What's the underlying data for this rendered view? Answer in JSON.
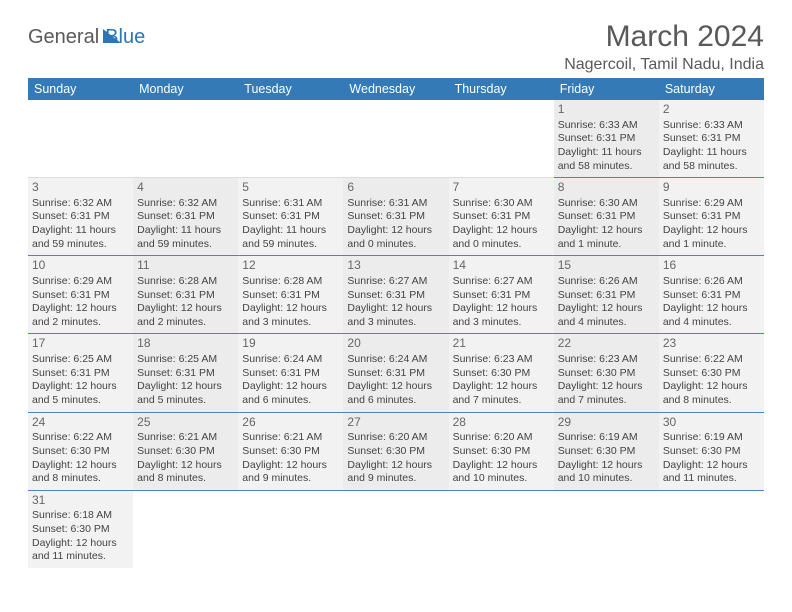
{
  "logo": {
    "part1": "General",
    "part2": "Blue"
  },
  "title": "March 2024",
  "location": "Nagercoil, Tamil Nadu, India",
  "colors": {
    "header_bg": "#337ab7",
    "header_text": "#ffffff",
    "row_bg_a": "#f2f2f2",
    "row_bg_b": "#ececec",
    "border": "#4a86c5",
    "text": "#444444",
    "title_text": "#595959",
    "logo_blue": "#2e75b6"
  },
  "typography": {
    "title_fontsize": 30,
    "location_fontsize": 16,
    "header_fontsize": 12.5,
    "cell_fontsize": 10.5,
    "daynum_fontsize": 12
  },
  "day_headers": [
    "Sunday",
    "Monday",
    "Tuesday",
    "Wednesday",
    "Thursday",
    "Friday",
    "Saturday"
  ],
  "weeks": [
    [
      null,
      null,
      null,
      null,
      null,
      {
        "n": "1",
        "sr": "6:33 AM",
        "ss": "6:31 PM",
        "dl": "11 hours and 58 minutes."
      },
      {
        "n": "2",
        "sr": "6:33 AM",
        "ss": "6:31 PM",
        "dl": "11 hours and 58 minutes."
      }
    ],
    [
      {
        "n": "3",
        "sr": "6:32 AM",
        "ss": "6:31 PM",
        "dl": "11 hours and 59 minutes."
      },
      {
        "n": "4",
        "sr": "6:32 AM",
        "ss": "6:31 PM",
        "dl": "11 hours and 59 minutes."
      },
      {
        "n": "5",
        "sr": "6:31 AM",
        "ss": "6:31 PM",
        "dl": "11 hours and 59 minutes."
      },
      {
        "n": "6",
        "sr": "6:31 AM",
        "ss": "6:31 PM",
        "dl": "12 hours and 0 minutes."
      },
      {
        "n": "7",
        "sr": "6:30 AM",
        "ss": "6:31 PM",
        "dl": "12 hours and 0 minutes."
      },
      {
        "n": "8",
        "sr": "6:30 AM",
        "ss": "6:31 PM",
        "dl": "12 hours and 1 minute."
      },
      {
        "n": "9",
        "sr": "6:29 AM",
        "ss": "6:31 PM",
        "dl": "12 hours and 1 minute."
      }
    ],
    [
      {
        "n": "10",
        "sr": "6:29 AM",
        "ss": "6:31 PM",
        "dl": "12 hours and 2 minutes."
      },
      {
        "n": "11",
        "sr": "6:28 AM",
        "ss": "6:31 PM",
        "dl": "12 hours and 2 minutes."
      },
      {
        "n": "12",
        "sr": "6:28 AM",
        "ss": "6:31 PM",
        "dl": "12 hours and 3 minutes."
      },
      {
        "n": "13",
        "sr": "6:27 AM",
        "ss": "6:31 PM",
        "dl": "12 hours and 3 minutes."
      },
      {
        "n": "14",
        "sr": "6:27 AM",
        "ss": "6:31 PM",
        "dl": "12 hours and 3 minutes."
      },
      {
        "n": "15",
        "sr": "6:26 AM",
        "ss": "6:31 PM",
        "dl": "12 hours and 4 minutes."
      },
      {
        "n": "16",
        "sr": "6:26 AM",
        "ss": "6:31 PM",
        "dl": "12 hours and 4 minutes."
      }
    ],
    [
      {
        "n": "17",
        "sr": "6:25 AM",
        "ss": "6:31 PM",
        "dl": "12 hours and 5 minutes."
      },
      {
        "n": "18",
        "sr": "6:25 AM",
        "ss": "6:31 PM",
        "dl": "12 hours and 5 minutes."
      },
      {
        "n": "19",
        "sr": "6:24 AM",
        "ss": "6:31 PM",
        "dl": "12 hours and 6 minutes."
      },
      {
        "n": "20",
        "sr": "6:24 AM",
        "ss": "6:31 PM",
        "dl": "12 hours and 6 minutes."
      },
      {
        "n": "21",
        "sr": "6:23 AM",
        "ss": "6:30 PM",
        "dl": "12 hours and 7 minutes."
      },
      {
        "n": "22",
        "sr": "6:23 AM",
        "ss": "6:30 PM",
        "dl": "12 hours and 7 minutes."
      },
      {
        "n": "23",
        "sr": "6:22 AM",
        "ss": "6:30 PM",
        "dl": "12 hours and 8 minutes."
      }
    ],
    [
      {
        "n": "24",
        "sr": "6:22 AM",
        "ss": "6:30 PM",
        "dl": "12 hours and 8 minutes."
      },
      {
        "n": "25",
        "sr": "6:21 AM",
        "ss": "6:30 PM",
        "dl": "12 hours and 8 minutes."
      },
      {
        "n": "26",
        "sr": "6:21 AM",
        "ss": "6:30 PM",
        "dl": "12 hours and 9 minutes."
      },
      {
        "n": "27",
        "sr": "6:20 AM",
        "ss": "6:30 PM",
        "dl": "12 hours and 9 minutes."
      },
      {
        "n": "28",
        "sr": "6:20 AM",
        "ss": "6:30 PM",
        "dl": "12 hours and 10 minutes."
      },
      {
        "n": "29",
        "sr": "6:19 AM",
        "ss": "6:30 PM",
        "dl": "12 hours and 10 minutes."
      },
      {
        "n": "30",
        "sr": "6:19 AM",
        "ss": "6:30 PM",
        "dl": "12 hours and 11 minutes."
      }
    ],
    [
      {
        "n": "31",
        "sr": "6:18 AM",
        "ss": "6:30 PM",
        "dl": "12 hours and 11 minutes."
      },
      null,
      null,
      null,
      null,
      null,
      null
    ]
  ],
  "labels": {
    "sunrise": "Sunrise:",
    "sunset": "Sunset:",
    "daylight": "Daylight:"
  }
}
